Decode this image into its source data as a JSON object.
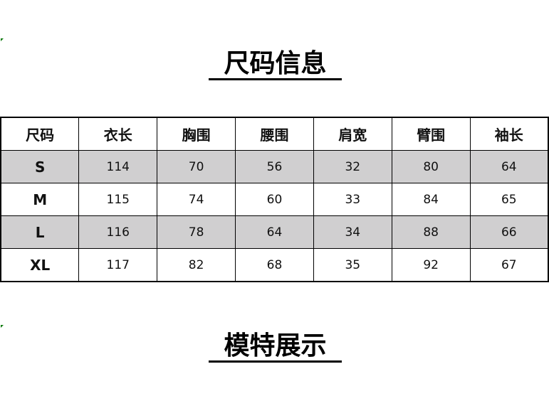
{
  "size_info_title": "尺码信息",
  "model_title": "模特展示",
  "table": {
    "headers": [
      "尺码",
      "衣长",
      "胸围",
      "腰围",
      "肩宽",
      "臂围",
      "袖长"
    ],
    "rows": [
      [
        "S",
        "114",
        "70",
        "56",
        "32",
        "80",
        "64"
      ],
      [
        "M",
        "115",
        "74",
        "60",
        "33",
        "84",
        "65"
      ],
      [
        "L",
        "116",
        "78",
        "64",
        "34",
        "88",
        "66"
      ],
      [
        "XL",
        "117",
        "82",
        "68",
        "35",
        "92",
        "67"
      ]
    ]
  },
  "colors": {
    "striped_row": "#d0cfd0",
    "error_indicator": "#0a7a0a"
  }
}
